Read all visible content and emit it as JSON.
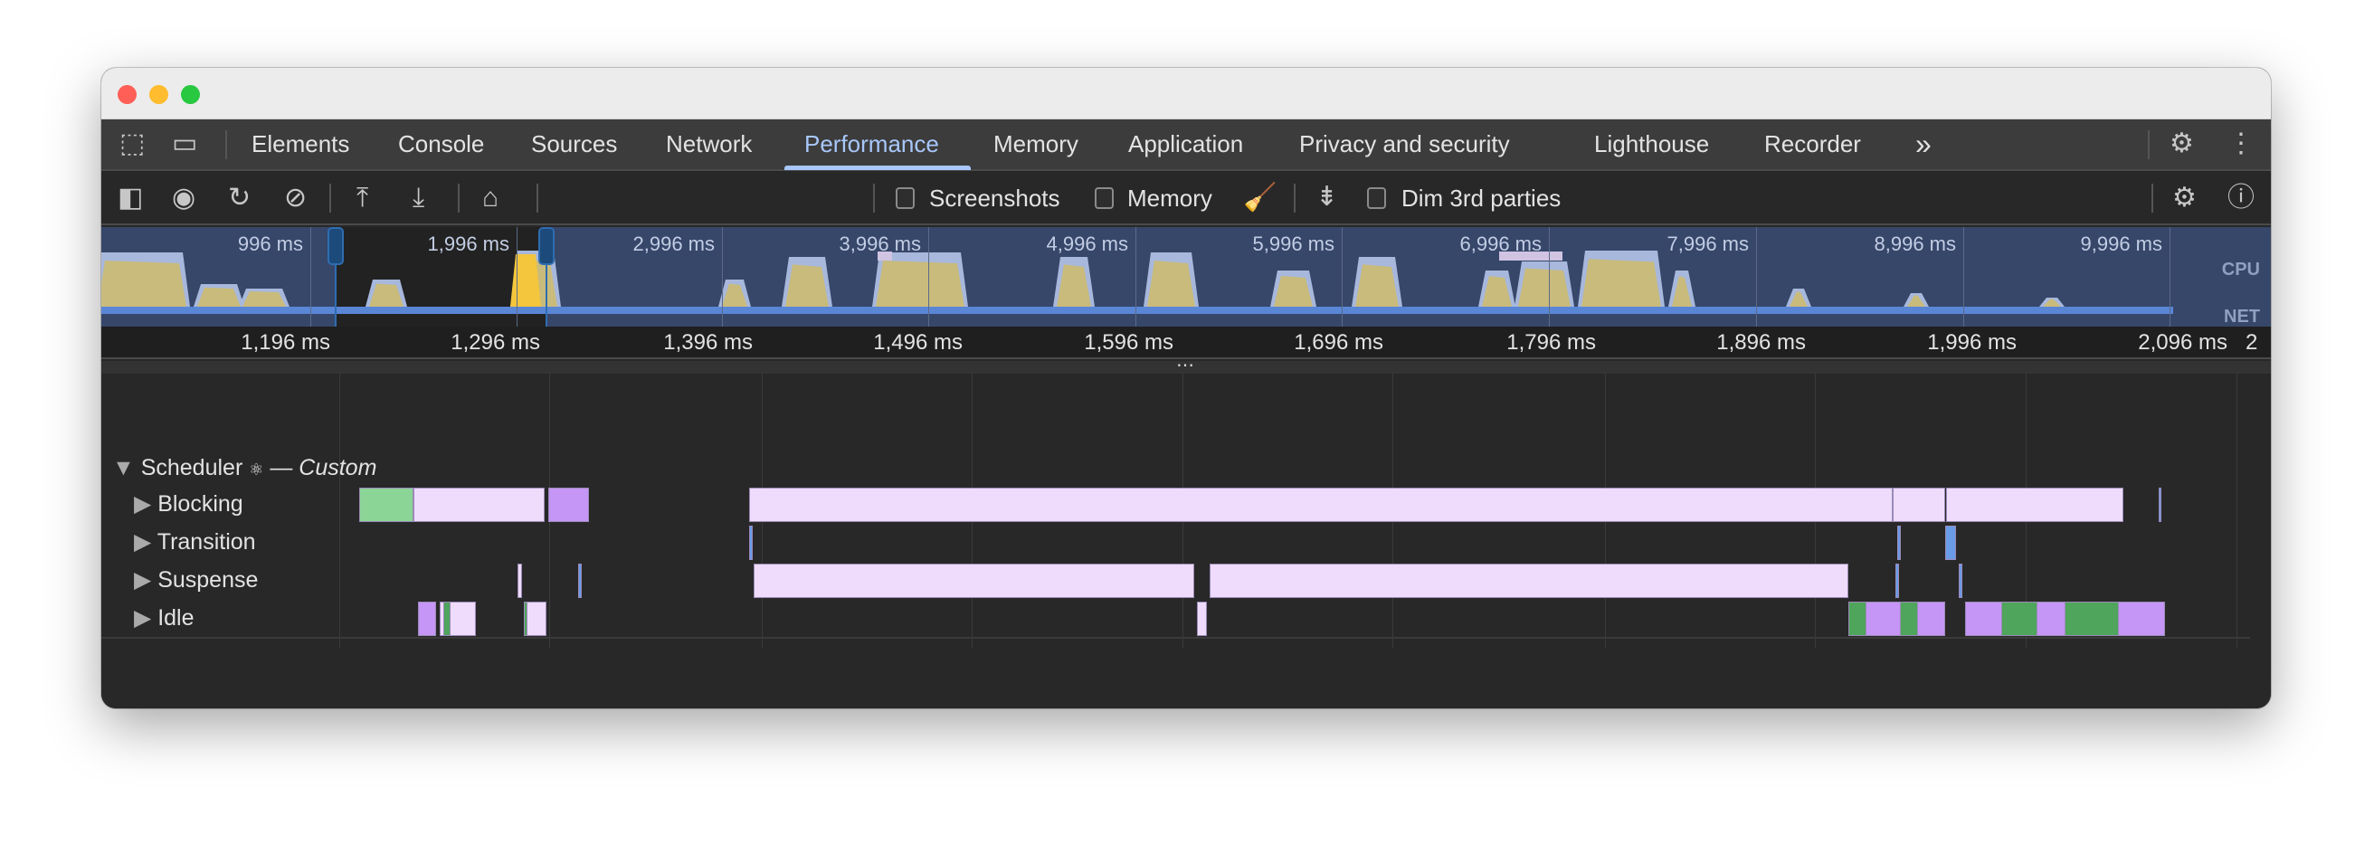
{
  "window": {
    "traffic_lights": [
      "#ff5f57",
      "#febc2e",
      "#28c840"
    ]
  },
  "tabs": {
    "items": [
      "Elements",
      "Console",
      "Sources",
      "Network",
      "Performance",
      "Memory",
      "Application",
      "Privacy and security",
      "Lighthouse",
      "Recorder"
    ],
    "active": "Performance",
    "more": "»"
  },
  "toolbar": {
    "screenshots": "Screenshots",
    "memory": "Memory",
    "dim": "Dim 3rd parties"
  },
  "overview": {
    "ticks": [
      "996 ms",
      "1,996 ms",
      "2,996 ms",
      "3,996 ms",
      "4,996 ms",
      "5,996 ms",
      "6,996 ms",
      "7,996 ms",
      "8,996 ms",
      "9,996 ms"
    ],
    "cpu_label": "CPU",
    "net_label": "NET"
  },
  "ruler": {
    "ticks": [
      "1,196 ms",
      "1,296 ms",
      "1,396 ms",
      "1,496 ms",
      "1,596 ms",
      "1,696 ms",
      "1,796 ms",
      "1,896 ms",
      "1,996 ms",
      "2,096 ms",
      "2"
    ]
  },
  "track": {
    "title": "Scheduler",
    "icon": "⚛",
    "suffix": "— Custom",
    "rows": [
      "Blocking",
      "Transition",
      "Suspense",
      "Idle"
    ]
  },
  "colors": {
    "accent": "#a8c7fa",
    "pink": "#efdcfd",
    "purple": "#c596f5",
    "green": "#8bd597",
    "dark_green": "#4fa55b",
    "blue": "#6a9be8"
  }
}
